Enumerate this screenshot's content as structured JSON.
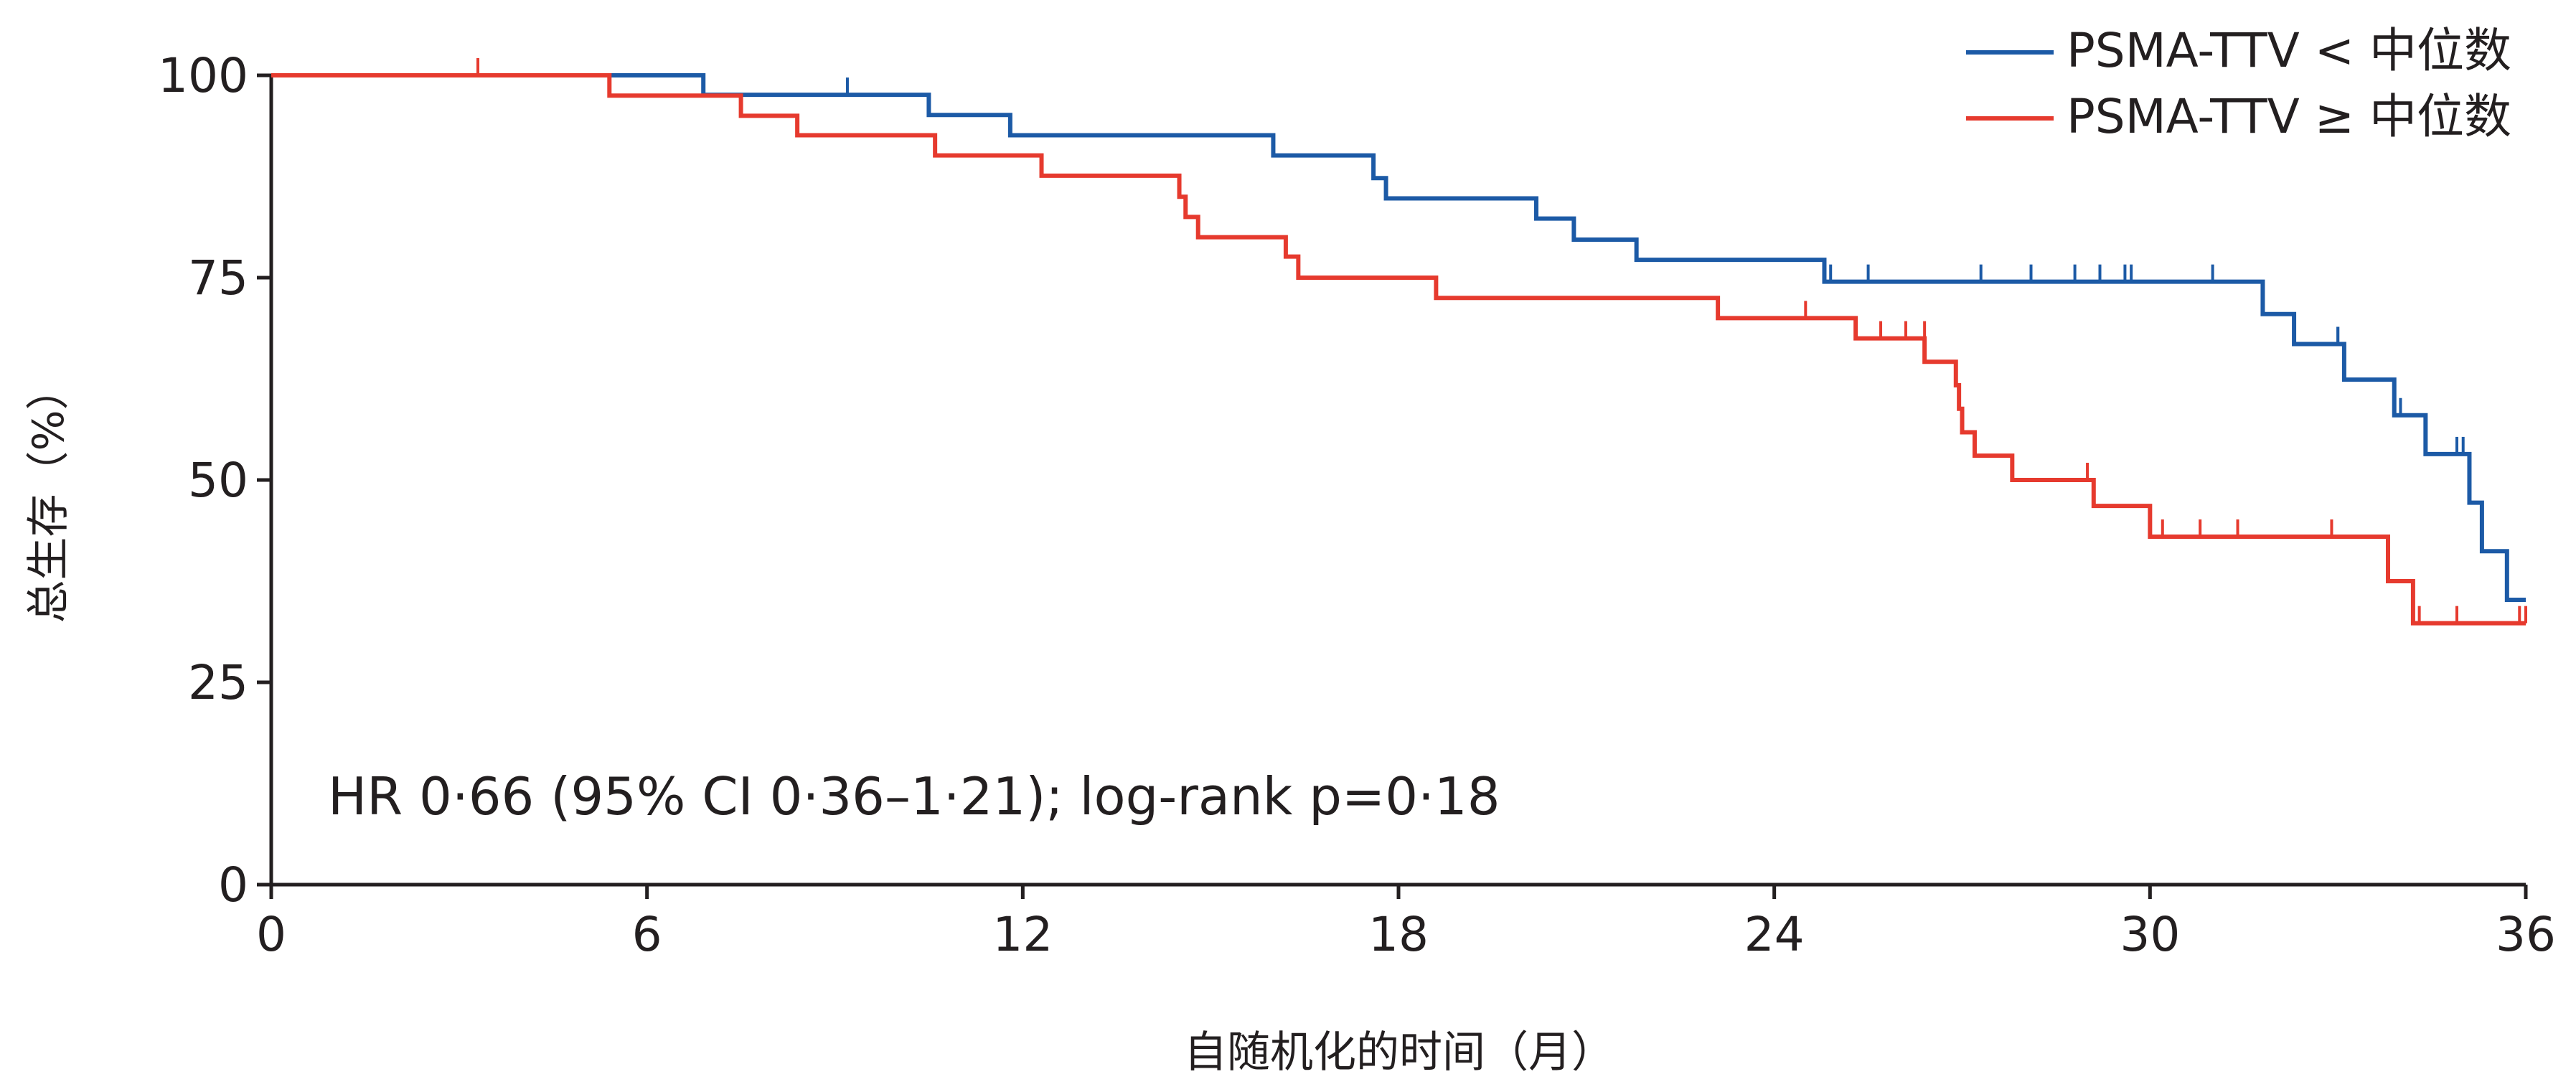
{
  "chart_data": {
    "type": "line",
    "subtype": "kaplan-meier",
    "xlabel": "自随机化的时间（月）",
    "ylabel": "总生存（%）",
    "xlim": [
      0,
      36
    ],
    "ylim": [
      0,
      100
    ],
    "xticks": [
      "0",
      "6",
      "12",
      "18",
      "24",
      "30",
      "36"
    ],
    "yticks": [
      "0",
      "25",
      "50",
      "75",
      "100"
    ],
    "grid": false,
    "legend_position": "top-right",
    "annotation": "HR 0·66 (95% CI 0·36–1·21); log-rank p=0·18",
    "series": [
      {
        "name": "PSMA-TTV < 中位数",
        "color": "#1c5aa6",
        "steps": [
          [
            0,
            100
          ],
          [
            6.9,
            97.6
          ],
          [
            10.5,
            95.1
          ],
          [
            11.8,
            92.6
          ],
          [
            16,
            90.1
          ],
          [
            17.6,
            87.3
          ],
          [
            17.8,
            84.8
          ],
          [
            20.2,
            82.3
          ],
          [
            20.8,
            79.7
          ],
          [
            21.8,
            77.2
          ],
          [
            24.8,
            74.5
          ],
          [
            31.8,
            70.5
          ],
          [
            32.3,
            66.8
          ],
          [
            33.1,
            62.4
          ],
          [
            33.9,
            58.0
          ],
          [
            34.4,
            53.2
          ],
          [
            35.1,
            47.2
          ],
          [
            35.3,
            41.2
          ],
          [
            35.7,
            35.2
          ],
          [
            36,
            35.2
          ]
        ],
        "censored": [
          [
            9.2,
            97.6
          ],
          [
            24.9,
            74.5
          ],
          [
            25.5,
            74.5
          ],
          [
            27.3,
            74.5
          ],
          [
            28.1,
            74.5
          ],
          [
            28.8,
            74.5
          ],
          [
            29.2,
            74.5
          ],
          [
            29.6,
            74.5
          ],
          [
            29.7,
            74.5
          ],
          [
            31.0,
            74.5
          ],
          [
            33.0,
            66.8
          ],
          [
            33.0,
            66.8
          ],
          [
            34.0,
            58.0
          ],
          [
            34.9,
            53.2
          ],
          [
            35.0,
            53.2
          ]
        ]
      },
      {
        "name": "PSMA-TTV ≥ 中位数",
        "color": "#e63a2e",
        "steps": [
          [
            0,
            100
          ],
          [
            5.4,
            97.5
          ],
          [
            7.5,
            95.0
          ],
          [
            8.4,
            92.6
          ],
          [
            10.6,
            90.1
          ],
          [
            12.3,
            87.6
          ],
          [
            14.5,
            85.0
          ],
          [
            14.6,
            82.5
          ],
          [
            14.8,
            80.0
          ],
          [
            16.2,
            77.6
          ],
          [
            16.4,
            75.0
          ],
          [
            18.6,
            72.5
          ],
          [
            23.1,
            70.0
          ],
          [
            25.3,
            67.5
          ],
          [
            26.4,
            64.6
          ],
          [
            26.9,
            61.7
          ],
          [
            26.95,
            58.8
          ],
          [
            27.0,
            55.9
          ],
          [
            27.2,
            53.0
          ],
          [
            27.8,
            50.0
          ],
          [
            29.1,
            46.8
          ],
          [
            30.0,
            43.0
          ],
          [
            33.8,
            37.5
          ],
          [
            34.2,
            32.3
          ],
          [
            36,
            32.3
          ]
        ],
        "censored": [
          [
            3.3,
            100
          ],
          [
            24.5,
            70.0
          ],
          [
            25.7,
            67.5
          ],
          [
            26.1,
            67.5
          ],
          [
            26.4,
            67.5
          ],
          [
            29.0,
            50.0
          ],
          [
            30.2,
            43.0
          ],
          [
            30.8,
            43.0
          ],
          [
            31.4,
            43.0
          ],
          [
            32.9,
            43.0
          ],
          [
            34.3,
            32.3
          ],
          [
            34.9,
            32.3
          ],
          [
            35.9,
            32.3
          ],
          [
            36.0,
            32.3
          ]
        ]
      }
    ]
  }
}
